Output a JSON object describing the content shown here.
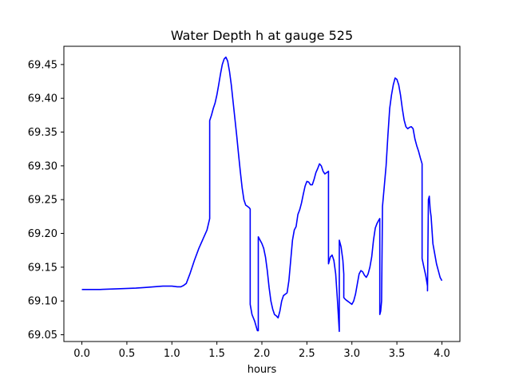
{
  "chart_data": {
    "type": "line",
    "title": "Water Depth h at gauge 525",
    "xlabel": "hours",
    "ylabel": "",
    "xlim": [
      -0.2,
      4.2
    ],
    "ylim": [
      69.04,
      69.477
    ],
    "xticks": [
      0.0,
      0.5,
      1.0,
      1.5,
      2.0,
      2.5,
      3.0,
      3.5,
      4.0
    ],
    "xtick_labels": [
      "0.0",
      "0.5",
      "1.0",
      "1.5",
      "2.0",
      "2.5",
      "3.0",
      "3.5",
      "4.0"
    ],
    "yticks": [
      69.05,
      69.1,
      69.15,
      69.2,
      69.25,
      69.3,
      69.35,
      69.4,
      69.45
    ],
    "ytick_labels": [
      "69.05",
      "69.10",
      "69.15",
      "69.20",
      "69.25",
      "69.30",
      "69.35",
      "69.40",
      "69.45"
    ],
    "grid": false,
    "color": "#0000ff",
    "series": [
      {
        "x": [
          0.0,
          0.2,
          0.4,
          0.6,
          0.7,
          0.8,
          0.9,
          1.0,
          1.06,
          1.1,
          1.13,
          1.16,
          1.2,
          1.25,
          1.3,
          1.35,
          1.39,
          1.42,
          1.42,
          1.44,
          1.46,
          1.48,
          1.5,
          1.52,
          1.54,
          1.56,
          1.58,
          1.6,
          1.62,
          1.64,
          1.66,
          1.68,
          1.7,
          1.72,
          1.74,
          1.76,
          1.78,
          1.8,
          1.82,
          1.84,
          1.86,
          1.87,
          1.87,
          1.89,
          1.92,
          1.95,
          1.96,
          1.96,
          1.98,
          2.0,
          2.02,
          2.04,
          2.06,
          2.08,
          2.1,
          2.12,
          2.14,
          2.16,
          2.18,
          2.2,
          2.22,
          2.24,
          2.26,
          2.28,
          2.3,
          2.32,
          2.34,
          2.36,
          2.38,
          2.4,
          2.42,
          2.44,
          2.46,
          2.48,
          2.5,
          2.52,
          2.54,
          2.56,
          2.58,
          2.6,
          2.62,
          2.64,
          2.66,
          2.68,
          2.7,
          2.72,
          2.74,
          2.74,
          2.76,
          2.78,
          2.8,
          2.82,
          2.84,
          2.86,
          2.86,
          2.88,
          2.9,
          2.91,
          2.91,
          2.93,
          2.95,
          2.97,
          3.0,
          3.02,
          3.04,
          3.06,
          3.08,
          3.1,
          3.12,
          3.14,
          3.16,
          3.18,
          3.2,
          3.22,
          3.24,
          3.26,
          3.28,
          3.3,
          3.31,
          3.31,
          3.32,
          3.33,
          3.34,
          3.36,
          3.38,
          3.4,
          3.42,
          3.44,
          3.46,
          3.48,
          3.5,
          3.52,
          3.54,
          3.56,
          3.58,
          3.6,
          3.62,
          3.64,
          3.66,
          3.68,
          3.7,
          3.72,
          3.74,
          3.76,
          3.78,
          3.78,
          3.8,
          3.82,
          3.84,
          3.84,
          3.85,
          3.86,
          3.87,
          3.88,
          3.9,
          3.92,
          3.94,
          3.96,
          3.98,
          4.0
        ],
        "y": [
          69.117,
          69.117,
          69.118,
          69.119,
          69.12,
          69.121,
          69.122,
          69.122,
          69.121,
          69.121,
          69.123,
          69.126,
          69.14,
          69.16,
          69.178,
          69.193,
          69.205,
          69.222,
          69.367,
          69.375,
          69.385,
          69.393,
          69.405,
          69.42,
          69.436,
          69.45,
          69.458,
          69.461,
          69.455,
          69.44,
          69.42,
          69.395,
          69.37,
          69.345,
          69.318,
          69.292,
          69.268,
          69.25,
          69.242,
          69.24,
          69.238,
          69.236,
          69.095,
          69.08,
          69.07,
          69.056,
          69.056,
          69.195,
          69.19,
          69.185,
          69.178,
          69.165,
          69.145,
          69.12,
          69.1,
          69.088,
          69.08,
          69.078,
          69.075,
          69.085,
          69.1,
          69.108,
          69.11,
          69.112,
          69.13,
          69.16,
          69.19,
          69.205,
          69.21,
          69.228,
          69.235,
          69.245,
          69.258,
          69.27,
          69.277,
          69.276,
          69.272,
          69.272,
          69.28,
          69.29,
          69.296,
          69.303,
          69.3,
          69.292,
          69.288,
          69.29,
          69.292,
          69.155,
          69.165,
          69.168,
          69.16,
          69.14,
          69.1,
          69.055,
          69.19,
          69.18,
          69.16,
          69.14,
          69.105,
          69.102,
          69.1,
          69.098,
          69.095,
          69.1,
          69.11,
          69.125,
          69.14,
          69.145,
          69.143,
          69.138,
          69.135,
          69.14,
          69.15,
          69.165,
          69.19,
          69.208,
          69.215,
          69.22,
          69.222,
          69.08,
          69.085,
          69.1,
          69.24,
          69.27,
          69.3,
          69.345,
          69.385,
          69.405,
          69.42,
          69.43,
          69.428,
          69.42,
          69.405,
          69.385,
          69.368,
          69.358,
          69.355,
          69.357,
          69.358,
          69.355,
          69.34,
          69.33,
          69.322,
          69.312,
          69.303,
          69.163,
          69.15,
          69.138,
          69.122,
          69.115,
          69.25,
          69.255,
          69.235,
          69.225,
          69.185,
          69.17,
          69.155,
          69.145,
          69.135,
          69.13
        ]
      }
    ]
  }
}
